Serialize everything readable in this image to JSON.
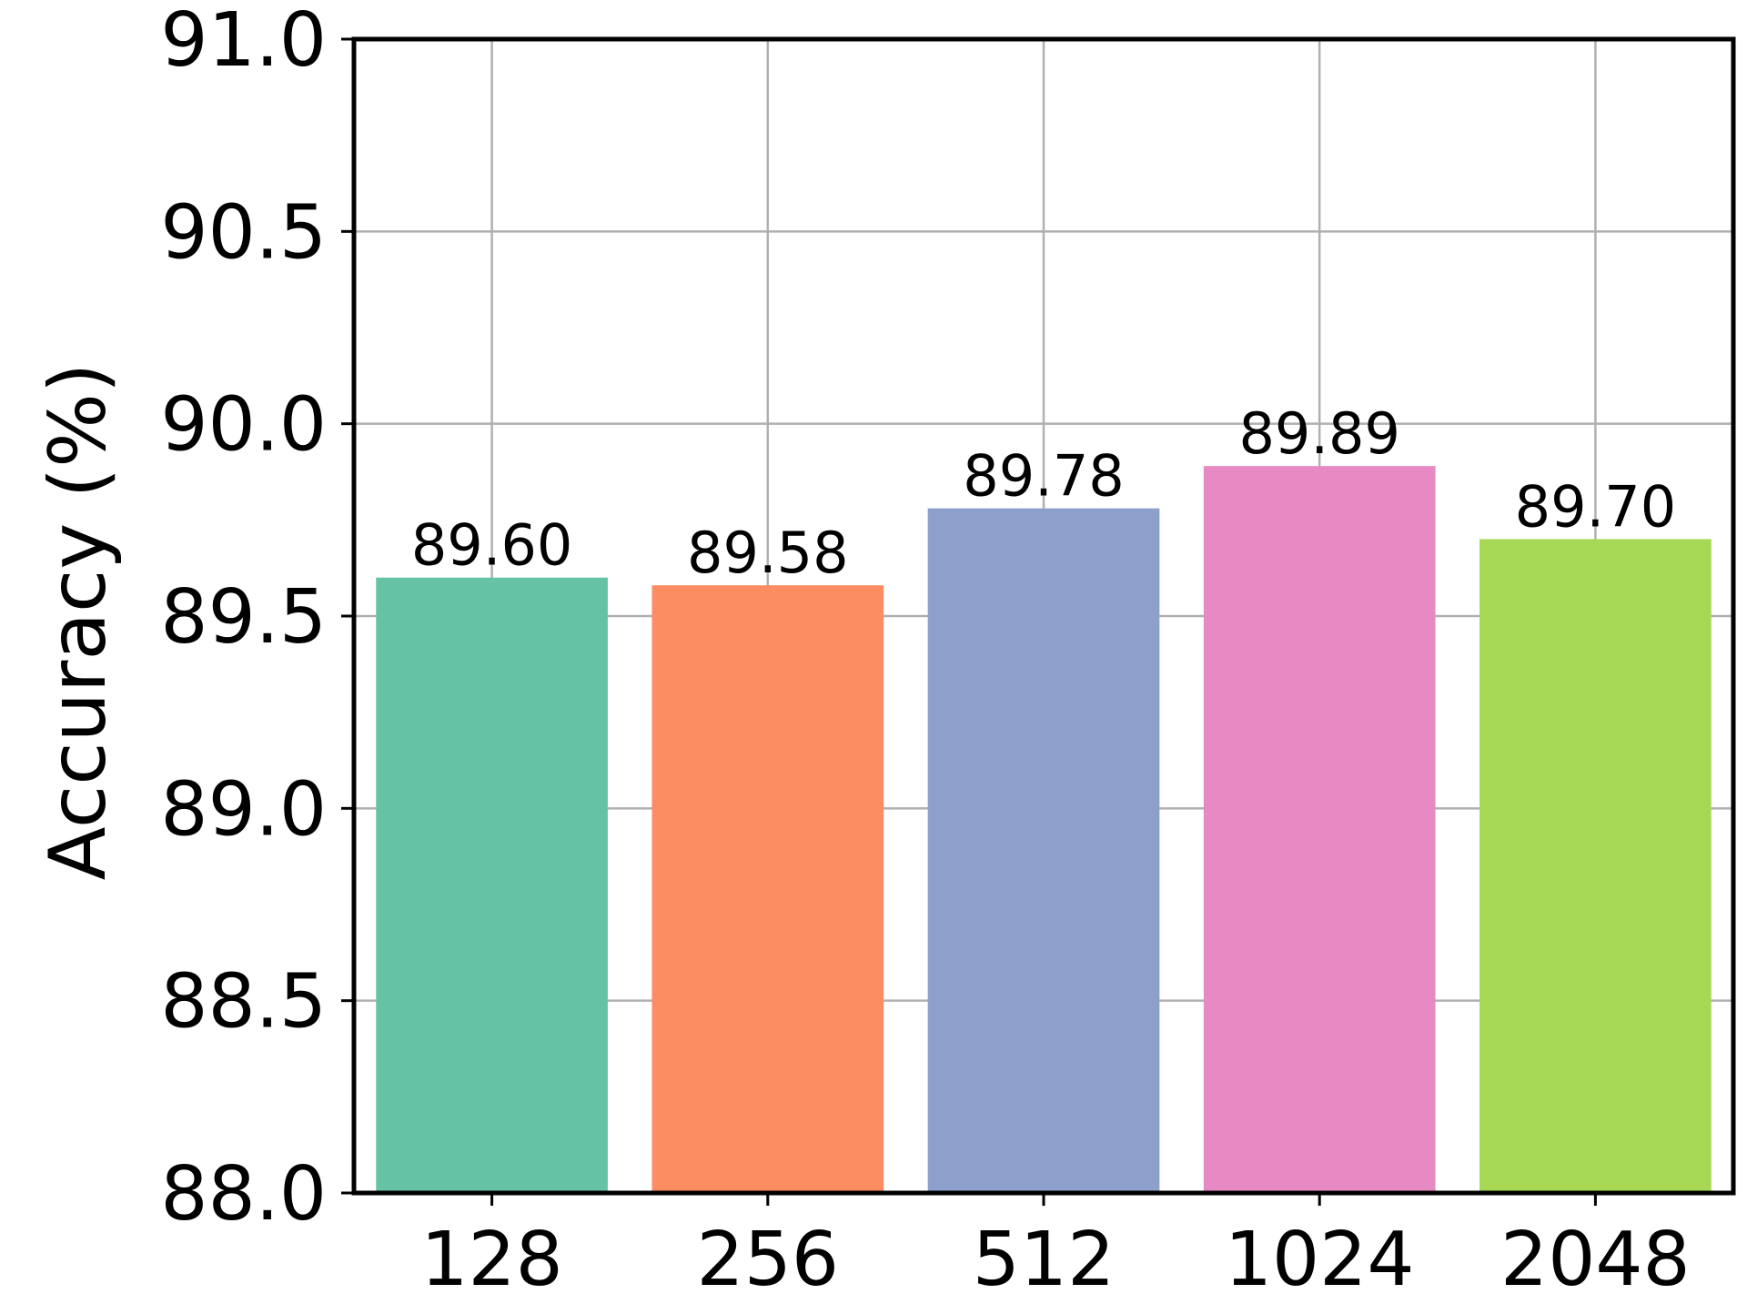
{
  "chart_data": {
    "type": "bar",
    "title": "",
    "xlabel": "",
    "ylabel": "Accuracy (%)",
    "categories": [
      "128",
      "256",
      "512",
      "1024",
      "2048"
    ],
    "values": [
      89.6,
      89.58,
      89.78,
      89.89,
      89.7
    ],
    "value_labels": [
      "89.60",
      "89.58",
      "89.78",
      "89.89",
      "89.70"
    ],
    "colors": [
      "#66c2a5",
      "#fc8d62",
      "#8da0cb",
      "#e78ac3",
      "#a6d854"
    ],
    "ylim": [
      88.0,
      91.0
    ],
    "yticks": [
      "88.0",
      "88.5",
      "89.0",
      "89.5",
      "90.0",
      "90.5",
      "91.0"
    ],
    "grid": true,
    "legend": "none"
  }
}
